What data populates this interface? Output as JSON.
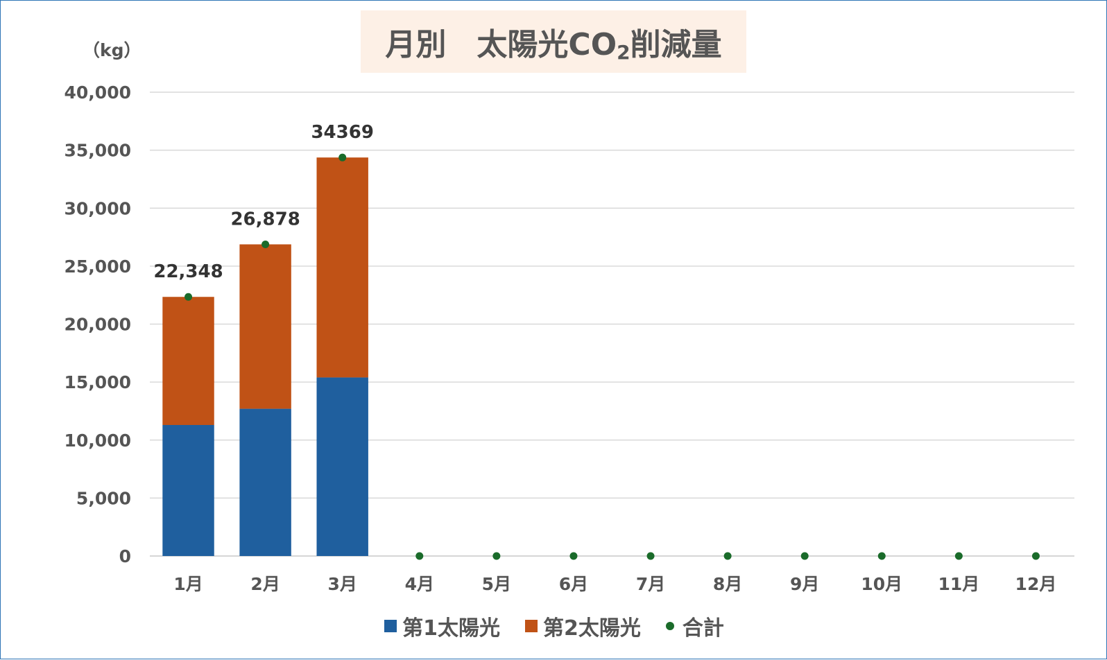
{
  "chart_data": {
    "type": "bar",
    "stacked": true,
    "title": "月別　太陽光CO",
    "title_subscript": "2",
    "title_suffix": "削減量",
    "unit_label": "（kg）",
    "categories": [
      "1月",
      "2月",
      "3月",
      "4月",
      "5月",
      "6月",
      "7月",
      "8月",
      "9月",
      "10月",
      "11月",
      "12月"
    ],
    "series": [
      {
        "name": "第1太陽光",
        "type": "bar",
        "color": "#1f5f9e",
        "values": [
          11300,
          12700,
          15400,
          null,
          null,
          null,
          null,
          null,
          null,
          null,
          null,
          null
        ]
      },
      {
        "name": "第2太陽光",
        "type": "bar",
        "color": "#c05216",
        "values": [
          11048,
          14178,
          18969,
          null,
          null,
          null,
          null,
          null,
          null,
          null,
          null,
          null
        ]
      },
      {
        "name": "合計",
        "type": "scatter",
        "color": "#1a6b2a",
        "values": [
          22348,
          26878,
          34369,
          0,
          0,
          0,
          0,
          0,
          0,
          0,
          0,
          0
        ]
      }
    ],
    "total_labels": [
      "22,348",
      "26,878",
      "34369"
    ],
    "yticks": [
      "40,000",
      "35,000",
      "30,000",
      "25,000",
      "20,000",
      "15,000",
      "10,000",
      "5,000",
      "0"
    ],
    "ylim": [
      0,
      40000
    ],
    "grid": true,
    "legend_position": "bottom"
  }
}
